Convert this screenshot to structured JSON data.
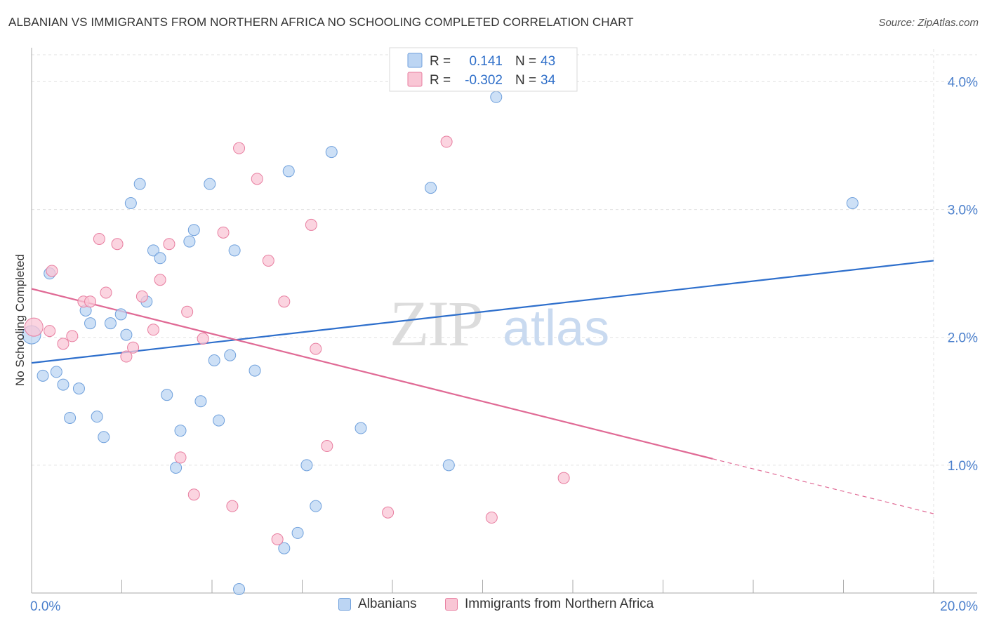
{
  "header": {
    "title": "ALBANIAN VS IMMIGRANTS FROM NORTHERN AFRICA NO SCHOOLING COMPLETED CORRELATION CHART",
    "source": "Source: ZipAtlas.com"
  },
  "watermark": {
    "zip": "ZIP",
    "atlas": "atlas"
  },
  "stats_legend": {
    "rows": [
      {
        "r_label": "R =",
        "r_value": "0.141",
        "n_label": "N =",
        "n_value": "43"
      },
      {
        "r_label": "R =",
        "r_value": "-0.302",
        "n_label": "N =",
        "n_value": "34"
      }
    ]
  },
  "chart_data": {
    "type": "scatter",
    "xlabel": "",
    "ylabel": "No Schooling Completed",
    "xlim": [
      0,
      20
    ],
    "ylim": [
      0,
      4.2
    ],
    "x_tick_labels": [
      {
        "value": 0,
        "label": "0.0%"
      },
      {
        "value": 20,
        "label": "20.0%"
      }
    ],
    "y_tick_labels": [
      {
        "value": 1,
        "label": "1.0%"
      },
      {
        "value": 2,
        "label": "2.0%"
      },
      {
        "value": 3,
        "label": "3.0%"
      },
      {
        "value": 4,
        "label": "4.0%"
      }
    ],
    "grid": true,
    "legend_position": "bottom",
    "series": [
      {
        "name": "Albanians",
        "color": "#6fa0dc",
        "fill": "#bcd5f3",
        "trend": {
          "x": [
            0,
            20
          ],
          "y": [
            1.8,
            2.6
          ]
        },
        "points": [
          [
            0.0,
            2.02
          ],
          [
            0.4,
            2.5
          ],
          [
            0.25,
            1.7
          ],
          [
            0.55,
            1.73
          ],
          [
            0.7,
            1.63
          ],
          [
            1.05,
            1.6
          ],
          [
            0.85,
            1.37
          ],
          [
            1.45,
            1.38
          ],
          [
            1.6,
            1.22
          ],
          [
            1.2,
            2.21
          ],
          [
            1.3,
            2.11
          ],
          [
            1.75,
            2.11
          ],
          [
            1.98,
            2.18
          ],
          [
            2.1,
            2.02
          ],
          [
            2.2,
            3.05
          ],
          [
            2.4,
            3.2
          ],
          [
            2.55,
            2.28
          ],
          [
            2.7,
            2.68
          ],
          [
            2.85,
            2.62
          ],
          [
            3.0,
            1.55
          ],
          [
            3.3,
            1.27
          ],
          [
            3.5,
            2.75
          ],
          [
            3.6,
            2.84
          ],
          [
            3.75,
            1.5
          ],
          [
            3.95,
            3.2
          ],
          [
            4.05,
            1.82
          ],
          [
            4.15,
            1.35
          ],
          [
            4.4,
            1.86
          ],
          [
            4.5,
            2.68
          ],
          [
            4.6,
            0.03
          ],
          [
            4.95,
            1.74
          ],
          [
            5.6,
            0.35
          ],
          [
            5.7,
            3.3
          ],
          [
            5.9,
            0.47
          ],
          [
            6.1,
            1.0
          ],
          [
            6.3,
            0.68
          ],
          [
            6.65,
            3.45
          ],
          [
            7.3,
            1.29
          ],
          [
            8.85,
            3.17
          ],
          [
            9.25,
            1.0
          ],
          [
            10.3,
            3.88
          ],
          [
            3.2,
            0.98
          ],
          [
            18.2,
            3.05
          ]
        ]
      },
      {
        "name": "Immigrants from Northern Africa",
        "color": "#e87ea0",
        "fill": "#f9c6d5",
        "trend": {
          "x": [
            0,
            15.1
          ],
          "y": [
            2.38,
            1.05
          ]
        },
        "trend_dashed": {
          "x": [
            15.1,
            20
          ],
          "y": [
            1.05,
            0.62
          ]
        },
        "points": [
          [
            0.05,
            2.08
          ],
          [
            0.45,
            2.52
          ],
          [
            0.7,
            1.95
          ],
          [
            0.9,
            2.01
          ],
          [
            1.15,
            2.28
          ],
          [
            1.3,
            2.28
          ],
          [
            1.5,
            2.77
          ],
          [
            1.65,
            2.35
          ],
          [
            1.9,
            2.73
          ],
          [
            2.1,
            1.85
          ],
          [
            2.25,
            1.92
          ],
          [
            2.45,
            2.32
          ],
          [
            2.7,
            2.06
          ],
          [
            2.85,
            2.45
          ],
          [
            3.05,
            2.73
          ],
          [
            3.3,
            1.06
          ],
          [
            3.45,
            2.2
          ],
          [
            3.6,
            0.77
          ],
          [
            3.8,
            1.99
          ],
          [
            4.25,
            2.82
          ],
          [
            4.45,
            0.68
          ],
          [
            4.6,
            3.48
          ],
          [
            5.0,
            3.24
          ],
          [
            5.25,
            2.6
          ],
          [
            5.45,
            0.42
          ],
          [
            5.6,
            2.28
          ],
          [
            6.2,
            2.88
          ],
          [
            6.3,
            1.91
          ],
          [
            6.55,
            1.15
          ],
          [
            7.9,
            0.63
          ],
          [
            9.2,
            3.53
          ],
          [
            10.2,
            0.59
          ],
          [
            11.8,
            0.9
          ],
          [
            0.4,
            2.05
          ]
        ]
      }
    ]
  },
  "bottom_legend": {
    "items": [
      {
        "label": "Albanians"
      },
      {
        "label": "Immigrants from Northern Africa"
      }
    ]
  }
}
